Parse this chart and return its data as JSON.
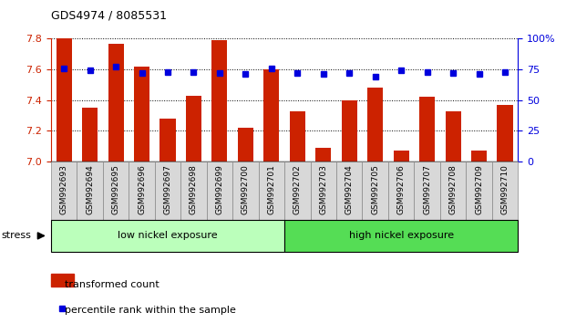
{
  "title": "GDS4974 / 8085531",
  "categories": [
    "GSM992693",
    "GSM992694",
    "GSM992695",
    "GSM992696",
    "GSM992697",
    "GSM992698",
    "GSM992699",
    "GSM992700",
    "GSM992701",
    "GSM992702",
    "GSM992703",
    "GSM992704",
    "GSM992705",
    "GSM992706",
    "GSM992707",
    "GSM992708",
    "GSM992709",
    "GSM992710"
  ],
  "bar_values": [
    7.8,
    7.35,
    7.77,
    7.62,
    7.28,
    7.43,
    7.79,
    7.22,
    7.6,
    7.33,
    7.09,
    7.4,
    7.48,
    7.07,
    7.42,
    7.33,
    7.07,
    7.37
  ],
  "dot_values": [
    76,
    74,
    77,
    72,
    73,
    73,
    72,
    71,
    76,
    72,
    71,
    72,
    69,
    74,
    73,
    72,
    71,
    73
  ],
  "bar_color": "#cc2200",
  "dot_color": "#0000dd",
  "ylim_left": [
    7.0,
    7.8
  ],
  "ylim_right": [
    0,
    100
  ],
  "yticks_left": [
    7.0,
    7.2,
    7.4,
    7.6,
    7.8
  ],
  "yticks_right": [
    0,
    25,
    50,
    75,
    100
  ],
  "ytick_labels_right": [
    "0",
    "25",
    "50",
    "75",
    "100%"
  ],
  "group1_label": "low nickel exposure",
  "group2_label": "high nickel exposure",
  "group1_count": 9,
  "group2_count": 9,
  "stress_label": "stress",
  "legend1": "transformed count",
  "legend2": "percentile rank within the sample",
  "group1_color": "#bbffbb",
  "group2_color": "#55dd55",
  "bar_width": 0.6
}
